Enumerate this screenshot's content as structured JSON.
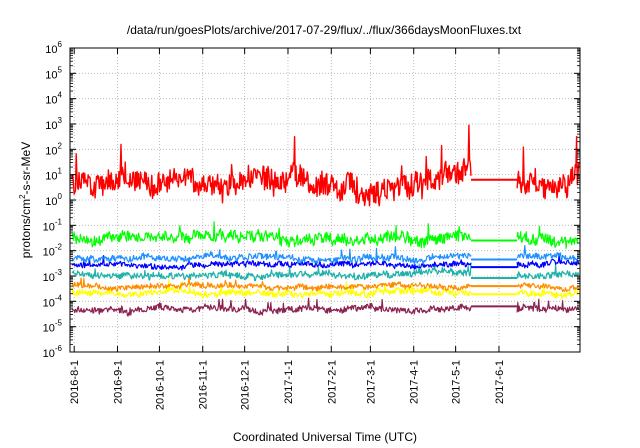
{
  "chart_data": {
    "type": "line",
    "title": "/data/run/goesPlots/archive/2017-07-29/flux/../flux/366daysMoonFluxes.txt",
    "xlabel": "Coordinated Universal Time (UTC)",
    "ylabel_base": "protons/cm",
    "ylabel_sup": "2",
    "ylabel_rest": "-s-sr-MeV",
    "xlim": [
      "2016-07-29",
      "2017-07-29"
    ],
    "ylim_exponent": [
      -6,
      6
    ],
    "yscale": "log",
    "grid": true,
    "x_ticks": [
      "2016-8-1",
      "2016-9-1",
      "2016-10-1",
      "2016-11-1",
      "2016-12-1",
      "2017-1-1",
      "2017-2-1",
      "2017-3-1",
      "2017-4-1",
      "2017-5-1",
      "2017-6-1"
    ],
    "y_ticks": [
      {
        "base": "10",
        "exp": "-6"
      },
      {
        "base": "10",
        "exp": "-5"
      },
      {
        "base": "10",
        "exp": "-4"
      },
      {
        "base": "10",
        "exp": "-3"
      },
      {
        "base": "10",
        "exp": "-2"
      },
      {
        "base": "10",
        "exp": "-1"
      },
      {
        "base": "10",
        "exp": "0"
      },
      {
        "base": "10",
        "exp": "1"
      },
      {
        "base": "10",
        "exp": "2"
      },
      {
        "base": "10",
        "exp": "3"
      },
      {
        "base": "10",
        "exp": "4"
      },
      {
        "base": "10",
        "exp": "5"
      },
      {
        "base": "10",
        "exp": "6"
      }
    ],
    "data_gap": [
      "2017-05-12",
      "2017-06-14"
    ],
    "series": [
      {
        "color": "#8b2252",
        "log10_level": -4.35,
        "noise": 0.12,
        "gap_level": -4.2
      },
      {
        "color": "#ffff00",
        "log10_level": -3.65,
        "noise": 0.12,
        "gap_level": -3.72
      },
      {
        "color": "#ff8c00",
        "log10_level": -3.4,
        "noise": 0.1,
        "gap_level": -3.4
      },
      {
        "color": "#20b2aa",
        "log10_level": -2.95,
        "noise": 0.12,
        "gap_level": -3.08
      },
      {
        "color": "#0000ff",
        "log10_level": -2.55,
        "noise": 0.1,
        "gap_level": -2.65
      },
      {
        "color": "#1e90ff",
        "log10_level": -2.25,
        "noise": 0.12,
        "gap_level": -2.35
      },
      {
        "color": "#00ff00",
        "log10_level": -1.5,
        "noise": 0.22,
        "gap_level": -1.6
      },
      {
        "color": "#ff0000",
        "log10_level": 0.7,
        "noise": 0.45,
        "gap_level": 0.8
      }
    ]
  }
}
